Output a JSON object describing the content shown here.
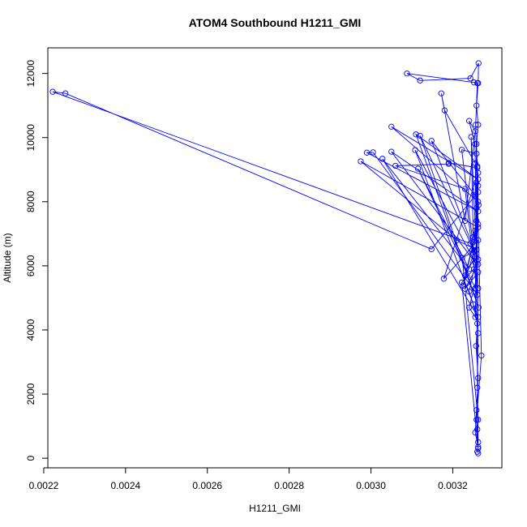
{
  "chart_data": {
    "type": "line",
    "title": "ATOM4 Southbound H1211_GMI",
    "xlabel": "H1211_GMI",
    "ylabel": "Altitude (m)",
    "xlim": [
      0.00221,
      0.00332
    ],
    "ylim": [
      -300,
      12800
    ],
    "xticks": [
      0.0022,
      0.0024,
      0.0026,
      0.0028,
      0.003,
      0.0032
    ],
    "xtick_labels": [
      "0.0022",
      "0.0024",
      "0.0026",
      "0.0028",
      "0.0030",
      "0.0032"
    ],
    "yticks": [
      0,
      2000,
      4000,
      6000,
      8000,
      10000,
      12000
    ],
    "ytick_labels": [
      "0",
      "2000",
      "4000",
      "6000",
      "8000",
      "10000",
      "12000"
    ],
    "series_color": "#0000ff",
    "series": [
      {
        "name": "H1211_GMI",
        "points": [
          [
            0.00326,
            200
          ],
          [
            0.003262,
            350
          ],
          [
            0.003255,
            800
          ],
          [
            0.003258,
            1500
          ],
          [
            0.003262,
            2500
          ],
          [
            0.003257,
            3500
          ],
          [
            0.00326,
            4200
          ],
          [
            0.00325,
            4800
          ],
          [
            0.00324,
            5200
          ],
          [
            0.003252,
            5900
          ],
          [
            0.003248,
            6500
          ],
          [
            0.003255,
            7100
          ],
          [
            0.003258,
            7800
          ],
          [
            0.003262,
            8500
          ],
          [
            0.00326,
            9100
          ],
          [
            0.003258,
            9800
          ],
          [
            0.003262,
            10400
          ],
          [
            0.003258,
            11000
          ],
          [
            0.003262,
            11700
          ],
          [
            0.003263,
            12320
          ],
          [
            0.003243,
            11850
          ],
          [
            0.00312,
            11780
          ],
          [
            0.003088,
            12000
          ],
          [
            0.003252,
            11720
          ],
          [
            0.00326,
            11700
          ],
          [
            0.003256,
            10400
          ],
          [
            0.00327,
            3200
          ],
          [
            0.003258,
            1200
          ],
          [
            0.003262,
            500
          ],
          [
            0.003255,
            9200
          ],
          [
            0.00318,
            10850
          ],
          [
            0.003172,
            11380
          ],
          [
            0.00323,
            7400
          ],
          [
            0.003255,
            10200
          ],
          [
            0.00324,
            10520
          ],
          [
            0.003254,
            9800
          ],
          [
            0.003258,
            7400
          ],
          [
            0.00325,
            6900
          ],
          [
            0.003245,
            10020
          ],
          [
            0.003262,
            5300
          ],
          [
            0.003222,
            9620
          ],
          [
            0.003258,
            9500
          ],
          [
            0.003255,
            8200
          ],
          [
            0.003148,
            9900
          ],
          [
            0.003262,
            6200
          ],
          [
            0.00312,
            10060
          ],
          [
            0.003263,
            4700
          ],
          [
            0.00311,
            10100
          ],
          [
            0.003262,
            8700
          ],
          [
            0.00305,
            10340
          ],
          [
            0.003262,
            8000
          ],
          [
            0.00326,
            9060
          ],
          [
            0.00319,
            9210
          ],
          [
            0.00319,
            9180
          ],
          [
            0.00306,
            9120
          ],
          [
            0.00323,
            8400
          ],
          [
            0.00326,
            5100
          ],
          [
            0.003005,
            9540
          ],
          [
            0.00299,
            9530
          ],
          [
            0.003262,
            7700
          ],
          [
            0.00305,
            9560
          ],
          [
            0.003255,
            6100
          ],
          [
            0.003108,
            9610
          ],
          [
            0.003262,
            4400
          ],
          [
            0.003028,
            9340
          ],
          [
            0.00324,
            5900
          ],
          [
            0.003115,
            9030
          ],
          [
            0.003255,
            5300
          ],
          [
            0.003262,
            8900
          ],
          [
            0.003178,
            5600
          ],
          [
            0.003262,
            6800
          ],
          [
            0.003225,
            5380
          ],
          [
            0.003262,
            7300
          ],
          [
            0.00323,
            5700
          ],
          [
            0.003255,
            6300
          ],
          [
            0.003243,
            6700
          ],
          [
            0.003262,
            7200
          ],
          [
            0.002975,
            9260
          ],
          [
            0.00321,
            6800
          ],
          [
            0.003258,
            6500
          ],
          [
            0.003223,
            6250
          ],
          [
            0.003262,
            1200
          ],
          [
            0.00326,
            900
          ],
          [
            0.003262,
            300
          ],
          [
            0.003222,
            5480
          ],
          [
            0.003262,
            6050
          ],
          [
            0.00323,
            5280
          ],
          [
            0.003262,
            5800
          ],
          [
            0.00324,
            4700
          ],
          [
            0.003255,
            4400
          ],
          [
            0.003262,
            8300
          ],
          [
            0.003148,
            6520
          ],
          [
            0.002253,
            11380
          ],
          [
            0.002222,
            11430
          ],
          [
            0.003253,
            6650
          ],
          [
            0.003263,
            7900
          ],
          [
            0.003258,
            8600
          ],
          [
            0.003262,
            3900
          ],
          [
            0.00326,
            2200
          ],
          [
            0.003262,
            150
          ]
        ]
      }
    ]
  }
}
